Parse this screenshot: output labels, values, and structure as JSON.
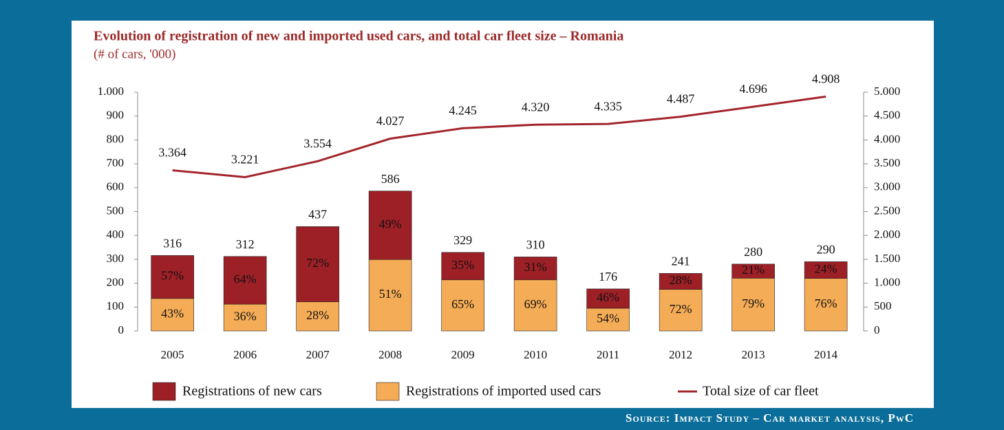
{
  "chart_data": {
    "type": "bar",
    "stacked": true,
    "title": "Evolution of registration of new and imported used cars, and total car fleet size – Romania",
    "subtitle": "(# of cars, '000)",
    "source": "Source: Impact Study – Car market analysis, PwC",
    "categories": [
      "2005",
      "2006",
      "2007",
      "2008",
      "2009",
      "2010",
      "2011",
      "2012",
      "2013",
      "2014"
    ],
    "totals": [
      316,
      312,
      437,
      586,
      329,
      310,
      176,
      241,
      280,
      290
    ],
    "series": [
      {
        "name": "Registrations of imported used cars",
        "color": "#f5ac56",
        "values": [
          136,
          112,
          122,
          299,
          214,
          214,
          95,
          174,
          221,
          220
        ],
        "share_labels": [
          "43%",
          "36%",
          "28%",
          "51%",
          "65%",
          "69%",
          "54%",
          "72%",
          "79%",
          "76%"
        ]
      },
      {
        "name": "Registrations of new cars",
        "color": "#9d2027",
        "values": [
          180,
          200,
          315,
          287,
          115,
          96,
          81,
          67,
          59,
          70
        ],
        "share_labels": [
          "57%",
          "64%",
          "72%",
          "49%",
          "35%",
          "31%",
          "46%",
          "28%",
          "21%",
          "24%"
        ]
      },
      {
        "name": "Total size of car fleet",
        "color": "#a3242b",
        "type": "line",
        "axis": "y2",
        "values": [
          3364,
          3221,
          3554,
          4027,
          4245,
          4320,
          4335,
          4487,
          4696,
          4908
        ],
        "value_labels": [
          "3.364",
          "3.221",
          "3.554",
          "4.027",
          "4.245",
          "4.320",
          "4.335",
          "4.487",
          "4.696",
          "4.908"
        ]
      }
    ],
    "legend_order": [
      1,
      0,
      2
    ],
    "ylim": [
      0,
      1000
    ],
    "yticks": [
      0,
      100,
      200,
      300,
      400,
      500,
      600,
      700,
      800,
      900,
      {
        "value": 1000,
        "label": "1.000"
      }
    ],
    "y2lim": [
      0,
      5000
    ],
    "y2ticks": [
      0,
      500,
      {
        "value": 1000,
        "label": "1.000"
      },
      {
        "value": 1500,
        "label": "1.500"
      },
      {
        "value": 2000,
        "label": "2.000"
      },
      {
        "value": 2500,
        "label": "2.500"
      },
      {
        "value": 3000,
        "label": "3.000"
      },
      {
        "value": 3500,
        "label": "3.500"
      },
      {
        "value": 4000,
        "label": "4.000"
      },
      {
        "value": 4500,
        "label": "4.500"
      },
      {
        "value": 5000,
        "label": "5.000"
      }
    ],
    "grid": false
  }
}
